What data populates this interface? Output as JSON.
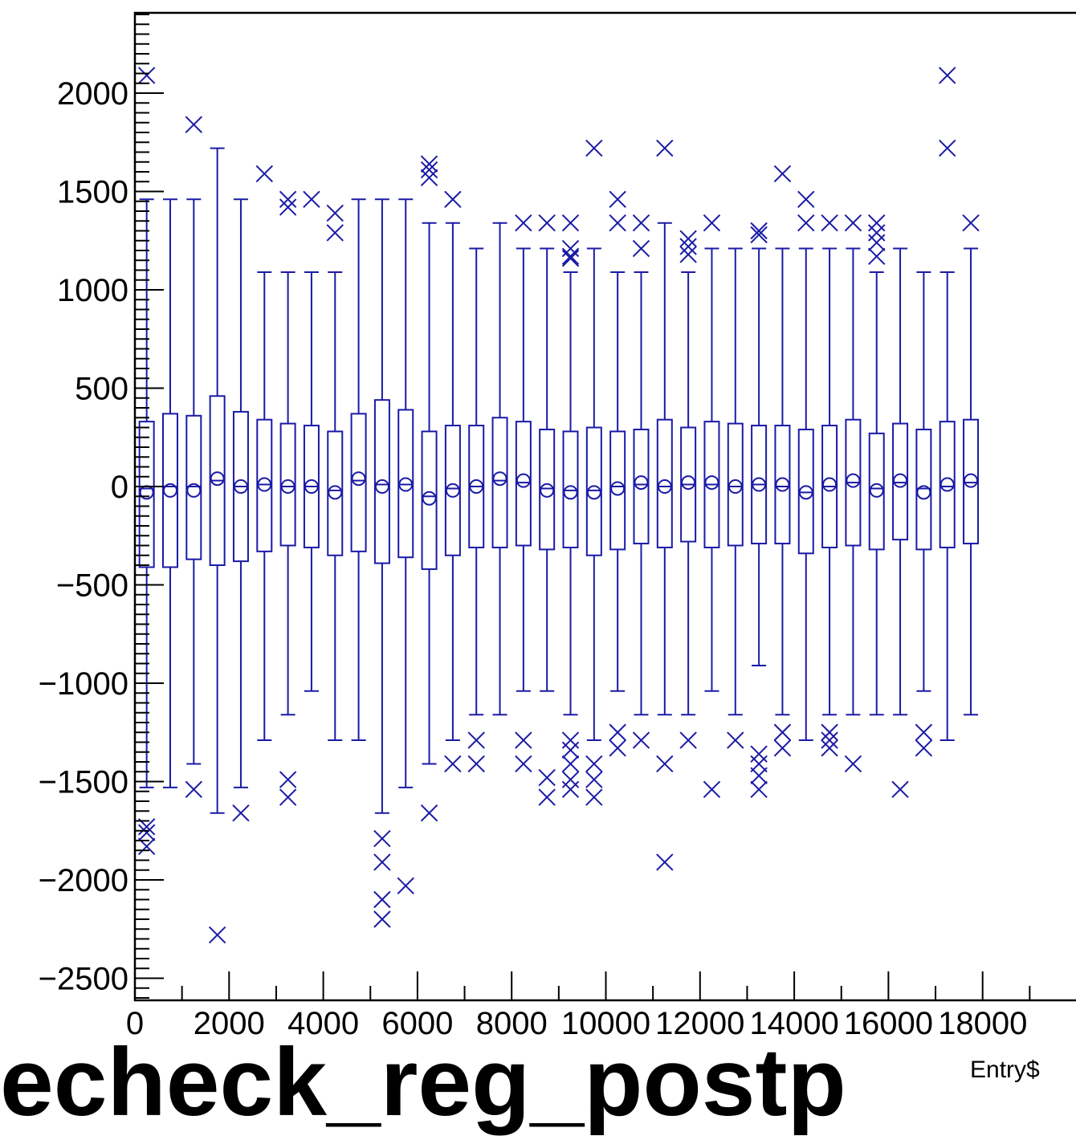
{
  "chart_data": {
    "type": "box",
    "title": "techeck_reg_postp",
    "xlabel": "Entry$",
    "ylabel": "",
    "xlim": [
      0,
      23000
    ],
    "ylim": [
      -2600,
      2400
    ],
    "x_ticks": [
      {
        "value": 0,
        "label": "0"
      },
      {
        "value": 2000,
        "label": "2000"
      },
      {
        "value": 4000,
        "label": "4000"
      },
      {
        "value": 6000,
        "label": "6000"
      },
      {
        "value": 8000,
        "label": "8000"
      },
      {
        "value": 10000,
        "label": "10000"
      },
      {
        "value": 12000,
        "label": "12000"
      },
      {
        "value": 14000,
        "label": "14000"
      },
      {
        "value": 16000,
        "label": "16000"
      },
      {
        "value": 18000,
        "label": "18000"
      }
    ],
    "y_ticks": [
      {
        "value": 2000,
        "label": "2000"
      },
      {
        "value": 1500,
        "label": "1500"
      },
      {
        "value": 1000,
        "label": "1000"
      },
      {
        "value": 500,
        "label": "500"
      },
      {
        "value": 0,
        "label": "0"
      },
      {
        "value": -500,
        "label": "−500"
      },
      {
        "value": -1000,
        "label": "−1000"
      },
      {
        "value": -1500,
        "label": "−1500"
      },
      {
        "value": -2000,
        "label": "−2000"
      },
      {
        "value": -2500,
        "label": "−2500"
      }
    ],
    "colors": {
      "box": "#1a1aa6",
      "axis": "#000000"
    },
    "boxes": [
      {
        "x": 250,
        "q1": -410,
        "q3": 330,
        "median": -10,
        "mean": -30,
        "lo": -1530,
        "hi": 1460,
        "outliers": [
          2090,
          -1730,
          -1760,
          -1830
        ]
      },
      {
        "x": 750,
        "q1": -410,
        "q3": 370,
        "median": 0,
        "mean": -20,
        "lo": -1530,
        "hi": 1460,
        "outliers": []
      },
      {
        "x": 1250,
        "q1": -370,
        "q3": 360,
        "median": 0,
        "mean": -20,
        "lo": -1410,
        "hi": 1460,
        "outliers": [
          1840,
          -1540
        ]
      },
      {
        "x": 1750,
        "q1": -400,
        "q3": 460,
        "median": 30,
        "mean": 40,
        "lo": -1660,
        "hi": 1720,
        "outliers": [
          -2280
        ]
      },
      {
        "x": 2250,
        "q1": -380,
        "q3": 380,
        "median": 0,
        "mean": 0,
        "lo": -1530,
        "hi": 1460,
        "outliers": [
          -1660
        ]
      },
      {
        "x": 2750,
        "q1": -330,
        "q3": 340,
        "median": 10,
        "mean": 10,
        "lo": -1290,
        "hi": 1090,
        "outliers": [
          1590
        ]
      },
      {
        "x": 3250,
        "q1": -300,
        "q3": 320,
        "median": 0,
        "mean": 0,
        "lo": -1160,
        "hi": 1090,
        "outliers": [
          1460,
          1420,
          -1490,
          -1580
        ]
      },
      {
        "x": 3750,
        "q1": -310,
        "q3": 310,
        "median": 0,
        "mean": 0,
        "lo": -1040,
        "hi": 1090,
        "outliers": [
          1460
        ]
      },
      {
        "x": 4250,
        "q1": -350,
        "q3": 280,
        "median": -20,
        "mean": -30,
        "lo": -1290,
        "hi": 1090,
        "outliers": [
          1390,
          1290
        ]
      },
      {
        "x": 4750,
        "q1": -330,
        "q3": 370,
        "median": 30,
        "mean": 40,
        "lo": -1290,
        "hi": 1460,
        "outliers": []
      },
      {
        "x": 5250,
        "q1": -390,
        "q3": 440,
        "median": 10,
        "mean": 0,
        "lo": -1660,
        "hi": 1460,
        "outliers": [
          -1790,
          -1910,
          -2100,
          -2200
        ]
      },
      {
        "x": 5750,
        "q1": -360,
        "q3": 390,
        "median": 10,
        "mean": 10,
        "lo": -1530,
        "hi": 1460,
        "outliers": [
          -2030
        ]
      },
      {
        "x": 6250,
        "q1": -420,
        "q3": 280,
        "median": -50,
        "mean": -60,
        "lo": -1410,
        "hi": 1340,
        "outliers": [
          1640,
          1610,
          1570,
          -1660
        ]
      },
      {
        "x": 6750,
        "q1": -350,
        "q3": 310,
        "median": -10,
        "mean": -20,
        "lo": -1290,
        "hi": 1340,
        "outliers": [
          1460,
          -1410
        ]
      },
      {
        "x": 7250,
        "q1": -310,
        "q3": 310,
        "median": 0,
        "mean": 0,
        "lo": -1160,
        "hi": 1210,
        "outliers": [
          -1290,
          -1410
        ]
      },
      {
        "x": 7750,
        "q1": -310,
        "q3": 350,
        "median": 30,
        "mean": 40,
        "lo": -1160,
        "hi": 1340,
        "outliers": []
      },
      {
        "x": 8250,
        "q1": -300,
        "q3": 330,
        "median": 20,
        "mean": 30,
        "lo": -1040,
        "hi": 1210,
        "outliers": [
          1340,
          -1290,
          -1410
        ]
      },
      {
        "x": 8750,
        "q1": -320,
        "q3": 290,
        "median": -10,
        "mean": -20,
        "lo": -1040,
        "hi": 1210,
        "outliers": [
          1340,
          -1480,
          -1580
        ]
      },
      {
        "x": 9250,
        "q1": -310,
        "q3": 280,
        "median": -20,
        "mean": -30,
        "lo": -1160,
        "hi": 1090,
        "outliers": [
          1340,
          1210,
          1170,
          1160,
          -1290,
          -1340,
          -1410,
          -1490,
          -1540
        ]
      },
      {
        "x": 9750,
        "q1": -350,
        "q3": 300,
        "median": -20,
        "mean": -30,
        "lo": -1290,
        "hi": 1210,
        "outliers": [
          1720,
          -1410,
          -1490,
          -1580
        ]
      },
      {
        "x": 10250,
        "q1": -320,
        "q3": 280,
        "median": 0,
        "mean": -10,
        "lo": -1040,
        "hi": 1090,
        "outliers": [
          1460,
          1340,
          -1250,
          -1330
        ]
      },
      {
        "x": 10750,
        "q1": -290,
        "q3": 290,
        "median": 10,
        "mean": 20,
        "lo": -1160,
        "hi": 1090,
        "outliers": [
          1340,
          1210,
          -1290
        ]
      },
      {
        "x": 11250,
        "q1": -310,
        "q3": 340,
        "median": 0,
        "mean": 0,
        "lo": -1160,
        "hi": 1340,
        "outliers": [
          1720,
          -1410,
          -1910
        ]
      },
      {
        "x": 11750,
        "q1": -280,
        "q3": 300,
        "median": 10,
        "mean": 20,
        "lo": -1160,
        "hi": 1090,
        "outliers": [
          1260,
          1220,
          1180,
          -1290
        ]
      },
      {
        "x": 12250,
        "q1": -310,
        "q3": 330,
        "median": 10,
        "mean": 20,
        "lo": -1040,
        "hi": 1210,
        "outliers": [
          1340,
          -1540
        ]
      },
      {
        "x": 12750,
        "q1": -300,
        "q3": 320,
        "median": 0,
        "mean": 0,
        "lo": -1160,
        "hi": 1210,
        "outliers": [
          -1290
        ]
      },
      {
        "x": 13250,
        "q1": -290,
        "q3": 310,
        "median": 10,
        "mean": 10,
        "lo": -910,
        "hi": 1210,
        "outliers": [
          1300,
          1280,
          -1360,
          -1410,
          -1470,
          -1540
        ]
      },
      {
        "x": 13750,
        "q1": -290,
        "q3": 310,
        "median": 0,
        "mean": 10,
        "lo": -1160,
        "hi": 1210,
        "outliers": [
          1590,
          -1250,
          -1330
        ]
      },
      {
        "x": 14250,
        "q1": -340,
        "q3": 290,
        "median": -30,
        "mean": -30,
        "lo": -1290,
        "hi": 1210,
        "outliers": [
          1460,
          1340
        ]
      },
      {
        "x": 14750,
        "q1": -310,
        "q3": 310,
        "median": 0,
        "mean": 10,
        "lo": -1160,
        "hi": 1210,
        "outliers": [
          1340,
          -1250,
          -1290,
          -1330
        ]
      },
      {
        "x": 15250,
        "q1": -300,
        "q3": 340,
        "median": 20,
        "mean": 30,
        "lo": -1160,
        "hi": 1210,
        "outliers": [
          1340,
          -1410
        ]
      },
      {
        "x": 15750,
        "q1": -320,
        "q3": 270,
        "median": -10,
        "mean": -20,
        "lo": -1160,
        "hi": 1090,
        "outliers": [
          1340,
          1290,
          1240,
          1170
        ]
      },
      {
        "x": 16250,
        "q1": -270,
        "q3": 320,
        "median": 20,
        "mean": 30,
        "lo": -1160,
        "hi": 1210,
        "outliers": [
          -1540
        ]
      },
      {
        "x": 16750,
        "q1": -320,
        "q3": 290,
        "median": -10,
        "mean": -30,
        "lo": -1040,
        "hi": 1090,
        "outliers": [
          -1250,
          -1330
        ]
      },
      {
        "x": 17250,
        "q1": -310,
        "q3": 330,
        "median": 0,
        "mean": 10,
        "lo": -1290,
        "hi": 1090,
        "outliers": [
          2090,
          1720
        ]
      },
      {
        "x": 17750,
        "q1": -290,
        "q3": 340,
        "median": 20,
        "mean": 30,
        "lo": -1160,
        "hi": 1210,
        "outliers": [
          1340
        ]
      }
    ]
  }
}
